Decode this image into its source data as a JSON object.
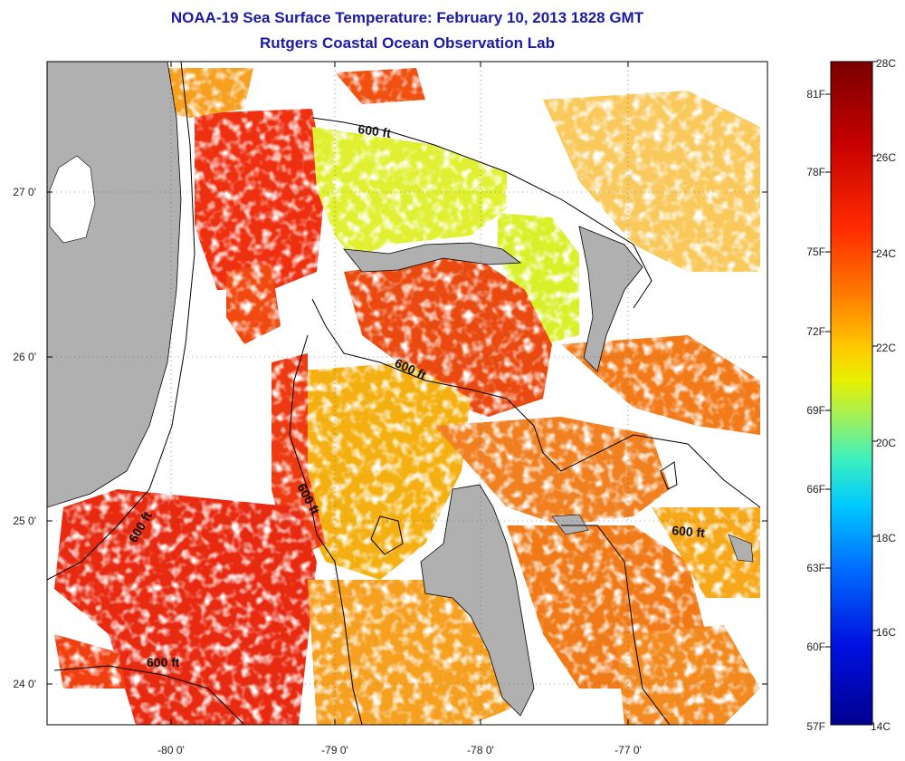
{
  "title_line1": "NOAA-19 Sea Surface Temperature:  February 10, 2013 1828 GMT",
  "title_line2": "Rutgers Coastal Ocean Observation Lab",
  "x_ticks": [
    "-80 0'",
    "-79 0'",
    "-78 0'",
    "-77 0'"
  ],
  "y_ticks": [
    "27 0'",
    "26 0'",
    "25 0'",
    "24 0'"
  ],
  "contour_labels": [
    "600 ft",
    "600 ft",
    "600 ft",
    "600 ft",
    "600 ft",
    "600 ft"
  ],
  "colorbar": {
    "fahrenheit": [
      "81F",
      "78F",
      "75F",
      "72F",
      "69F",
      "66F",
      "63F",
      "60F",
      "57F"
    ],
    "celsius": [
      "28C",
      "26C",
      "24C",
      "22C",
      "20C",
      "18C",
      "16C",
      "14C"
    ],
    "stops": [
      "#7a0000",
      "#c40000",
      "#ff2a00",
      "#ff7a00",
      "#ffc800",
      "#e8f000",
      "#9cf060",
      "#3cf0c0",
      "#00c8ff",
      "#0070ff",
      "#0010e0",
      "#000090"
    ]
  },
  "colors": {
    "land": "#b0b0b0",
    "no_data": "#ffffff",
    "title": "#1a1aa6"
  }
}
